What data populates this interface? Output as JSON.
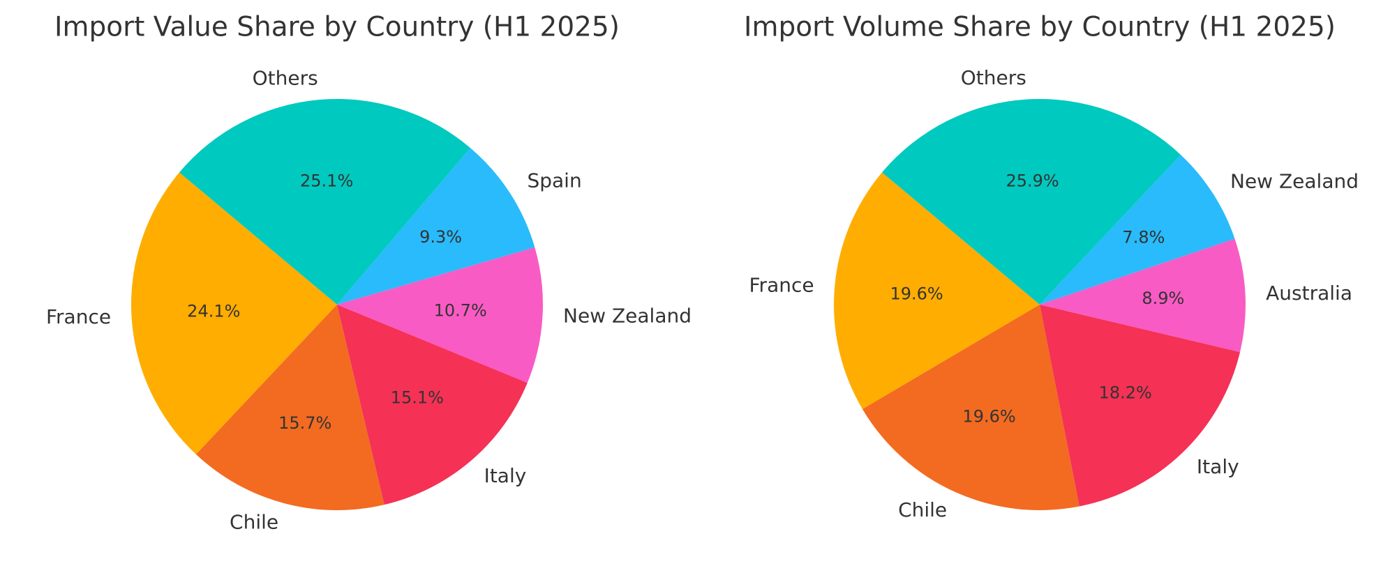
{
  "chart_data": [
    {
      "type": "pie",
      "title": "Import Value Share by Country (H1 2025)",
      "categories": [
        "France",
        "Chile",
        "Italy",
        "New Zealand",
        "Spain",
        "Others"
      ],
      "values": [
        24.1,
        15.7,
        15.1,
        10.7,
        9.3,
        25.1
      ],
      "value_labels": [
        "24.1%",
        "15.7%",
        "15.1%",
        "10.7%",
        "9.3%",
        "25.1%"
      ],
      "colors": [
        "#ffad00",
        "#f26b21",
        "#f53155",
        "#f95bc4",
        "#29bbfb",
        "#00c9bf"
      ],
      "start_angle": 140
    },
    {
      "type": "pie",
      "title": "Import Volume Share by Country (H1 2025)",
      "categories": [
        "France",
        "Chile",
        "Italy",
        "Australia",
        "New Zealand",
        "Others"
      ],
      "values": [
        19.6,
        19.6,
        18.2,
        8.9,
        7.8,
        25.9
      ],
      "value_labels": [
        "19.6%",
        "19.6%",
        "18.2%",
        "8.9%",
        "7.8%",
        "25.9%"
      ],
      "colors": [
        "#ffad00",
        "#f26b21",
        "#f53155",
        "#f95bc4",
        "#29bbfb",
        "#00c9bf"
      ],
      "start_angle": 140
    }
  ]
}
